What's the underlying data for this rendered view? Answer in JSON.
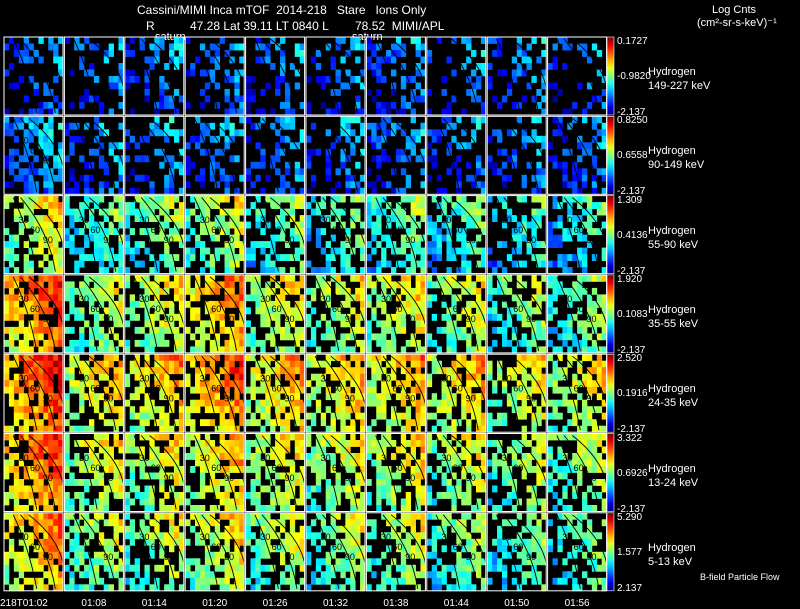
{
  "header": {
    "line1": "Cassini/MIMI Inca mTOF  2014-218   Stare   Ions Only",
    "r_label": "R",
    "line2": "47.28 Lat 39.11 LT 0840 L        78.52  MIMI/APL",
    "saturn_1": "saturn",
    "saturn_2": "saturn",
    "units_1": "Log Cnts",
    "units_2": "(cm²-sr-s-keV)⁻¹"
  },
  "chart_data": {
    "type": "heatmap",
    "title": "Cassini/MIMI Inca mTOF  2014-218   Stare   Ions Only",
    "x_tick_labels": [
      "218T01:02",
      "01:08",
      "01:14",
      "01:20",
      "01:26",
      "01:32",
      "01:38",
      "01:44",
      "01:50",
      "01:56"
    ],
    "contour_labels": [
      "30",
      "60",
      "90"
    ],
    "rows": [
      {
        "species": "Hydrogen",
        "energy": "149-227 keV",
        "max": "0.1727",
        "mid": "-0.9820",
        "min": "-2.137",
        "fill": [
          0.45,
          0.4,
          0.45,
          0.45,
          0.4,
          0.4,
          0.45,
          0.35,
          0.35,
          0.35
        ],
        "level": [
          0.2,
          0.2,
          0.2,
          0.2,
          0.2,
          0.2,
          0.2,
          0.2,
          0.2,
          0.2
        ]
      },
      {
        "species": "Hydrogen",
        "energy": "90-149 keV",
        "max": "0.8250",
        "mid": "0.6558",
        "min": "-2.137",
        "fill": [
          0.75,
          0.5,
          0.5,
          0.55,
          0.5,
          0.45,
          0.55,
          0.45,
          0.4,
          0.45
        ],
        "level": [
          0.25,
          0.22,
          0.22,
          0.22,
          0.22,
          0.22,
          0.22,
          0.2,
          0.2,
          0.2
        ]
      },
      {
        "species": "Hydrogen",
        "energy": "55-90 keV",
        "max": "1.309",
        "mid": "0.4136",
        "min": "-2.137",
        "fill": [
          0.9,
          0.75,
          0.75,
          0.8,
          0.75,
          0.7,
          0.75,
          0.7,
          0.6,
          0.6
        ],
        "level": [
          0.55,
          0.4,
          0.45,
          0.5,
          0.42,
          0.4,
          0.42,
          0.38,
          0.35,
          0.35
        ]
      },
      {
        "species": "Hydrogen",
        "energy": "35-55 keV",
        "max": "1.920",
        "mid": "0.1083",
        "min": "-2.137",
        "fill": [
          0.97,
          0.8,
          0.82,
          0.9,
          0.85,
          0.82,
          0.85,
          0.8,
          0.72,
          0.7
        ],
        "level": [
          0.72,
          0.5,
          0.55,
          0.65,
          0.55,
          0.52,
          0.55,
          0.5,
          0.45,
          0.45
        ]
      },
      {
        "species": "Hydrogen",
        "energy": "24-35 keV",
        "max": "2.520",
        "mid": "0.1916",
        "min": "-2.137",
        "fill": [
          0.98,
          0.85,
          0.85,
          0.92,
          0.88,
          0.85,
          0.88,
          0.85,
          0.75,
          0.72
        ],
        "level": [
          0.75,
          0.6,
          0.62,
          0.7,
          0.62,
          0.6,
          0.62,
          0.6,
          0.55,
          0.55
        ]
      },
      {
        "species": "Hydrogen",
        "energy": "13-24 keV",
        "max": "3.322",
        "mid": "0.6926",
        "min": "-2.137",
        "fill": [
          0.98,
          0.85,
          0.82,
          0.9,
          0.88,
          0.82,
          0.85,
          0.8,
          0.72,
          0.7
        ],
        "level": [
          0.72,
          0.55,
          0.55,
          0.6,
          0.55,
          0.52,
          0.55,
          0.52,
          0.48,
          0.48
        ]
      },
      {
        "species": "Hydrogen",
        "energy": "5-13 keV",
        "max": "5.290",
        "mid": "1.577",
        "min": "2.137",
        "fill": [
          0.98,
          0.8,
          0.8,
          0.88,
          0.82,
          0.8,
          0.82,
          0.75,
          0.68,
          0.6
        ],
        "level": [
          0.65,
          0.5,
          0.5,
          0.55,
          0.5,
          0.48,
          0.5,
          0.45,
          0.42,
          0.42
        ]
      }
    ],
    "legend_note": "B-field Particle Flow"
  },
  "colors": {
    "background": "#000000",
    "contour": "#000000",
    "frame": "#ffffff"
  }
}
